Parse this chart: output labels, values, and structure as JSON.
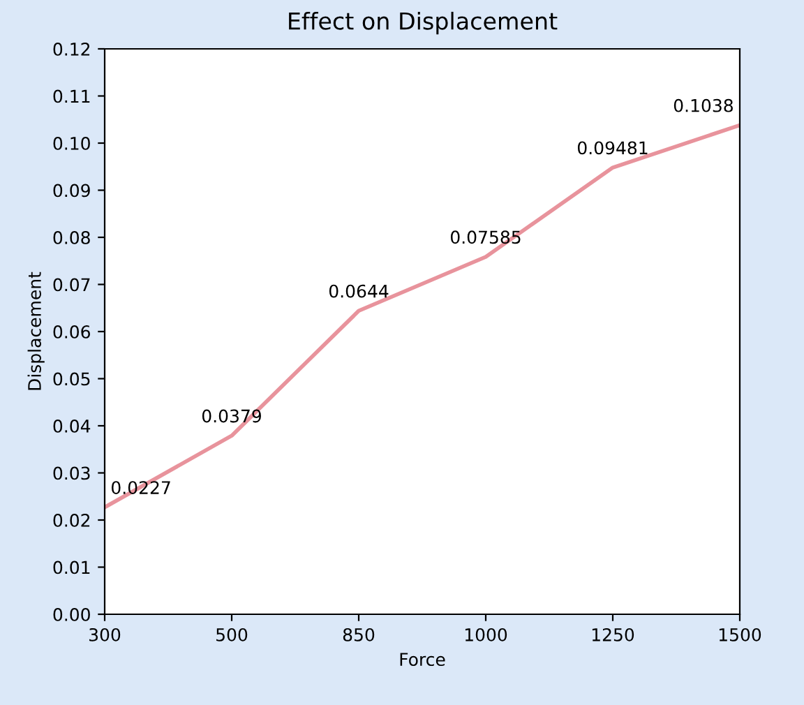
{
  "chart_data": {
    "type": "line",
    "title": "Effect on Displacement",
    "xlabel": "Force",
    "ylabel": "Displacement",
    "categories": [
      "300",
      "500",
      "850",
      "1000",
      "1250",
      "1500"
    ],
    "series": [
      {
        "color": "#e8939c",
        "values": [
          0.0227,
          0.0379,
          0.0644,
          0.07585,
          0.09481,
          0.1038
        ]
      }
    ],
    "data_labels": true,
    "ylim": [
      0,
      0.12
    ],
    "yticks": [
      {
        "value": 0,
        "label": "0.00"
      },
      {
        "value": 0.01,
        "label": "0.01"
      },
      {
        "value": 0.02,
        "label": "0.02"
      },
      {
        "value": 0.03,
        "label": "0.03"
      },
      {
        "value": 0.04,
        "label": "0.04"
      },
      {
        "value": 0.05,
        "label": "0.05"
      },
      {
        "value": 0.06,
        "label": "0.06"
      },
      {
        "value": 0.07,
        "label": "0.07"
      },
      {
        "value": 0.08,
        "label": "0.08"
      },
      {
        "value": 0.09,
        "label": "0.09"
      },
      {
        "value": 0.1,
        "label": "0.10"
      },
      {
        "value": 0.11,
        "label": "0.11"
      },
      {
        "value": 0.12,
        "label": "0.12"
      }
    ],
    "grid": false,
    "legend": false,
    "marker": "none",
    "line_style": "solid"
  }
}
